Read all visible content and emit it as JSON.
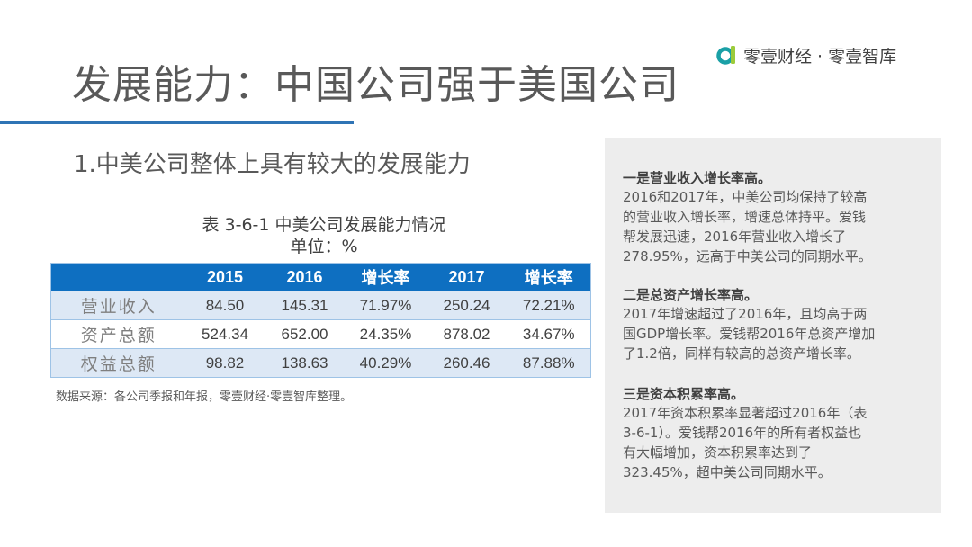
{
  "header": {
    "title": "发展能力：中国公司强于美国公司",
    "brand": "零壹财经 · 零壹智库",
    "brand_logo_icon": "brand-logo-icon",
    "accent_color": "#2f74b5",
    "logo_colors": [
      "#1aa0a6",
      "#9ccb3b"
    ]
  },
  "subtitle": "1.中美公司整体上具有较大的发展能力",
  "table": {
    "caption": "表 3-6-1 中美公司发展能力情况",
    "unit": "单位：%",
    "header_color": "#0e6fc1",
    "columns": [
      "",
      "2015",
      "2016",
      "增长率",
      "2017",
      "增长率"
    ],
    "rows": [
      {
        "label": "营业收入",
        "cells": [
          "84.50",
          "145.31",
          "71.97%",
          "250.24",
          "72.21%"
        ]
      },
      {
        "label": "资产总额",
        "cells": [
          "524.34",
          "652.00",
          "24.35%",
          "878.02",
          "34.67%"
        ]
      },
      {
        "label": "权益总额",
        "cells": [
          "98.82",
          "138.63",
          "40.29%",
          "260.46",
          "87.88%"
        ]
      }
    ],
    "source": "数据来源：各公司季报和年报，零壹财经·零壹智库整理。"
  },
  "sidebar": {
    "sections": [
      {
        "title": "一是营业收入增长率高。",
        "lines": [
          "2016和2017年，中美公司均保持了较高",
          "的营业收入增长率，增速总体持平。爱钱",
          "帮发展迅速，2016年营业收入增长了",
          "278.95%，远高于中美公司的同期水平。"
        ]
      },
      {
        "title": "二是总资产增长率高。",
        "lines": [
          "2017年增速超过了2016年，且均高于两",
          "国GDP增长率。爱钱帮2016年总资产增加",
          "了1.2倍，同样有较高的总资产增长率。"
        ]
      },
      {
        "title": "三是资本积累率高。",
        "lines": [
          "2017年资本积累率显著超过2016年（表",
          "3-6-1）。爱钱帮2016年的所有者权益也",
          "有大幅增加，资本积累率达到了",
          "323.45%，超中美公司同期水平。"
        ]
      }
    ]
  }
}
